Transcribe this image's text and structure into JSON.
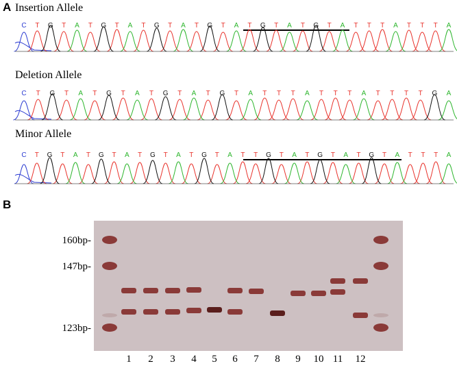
{
  "panel_a": {
    "label": "A",
    "tracks": [
      {
        "title": "Insertion Allele",
        "bases": [
          "C",
          "T",
          "G",
          "T",
          "A",
          "T",
          "G",
          "T",
          "A",
          "T",
          "G",
          "T",
          "A",
          "T",
          "G",
          "T",
          "A",
          "T",
          "G",
          "T",
          "A",
          "T",
          "G",
          "T",
          "A",
          "T",
          "T",
          "T",
          "A",
          "T",
          "T",
          "T",
          "A"
        ]
      },
      {
        "title": "Deletion Allele",
        "bases": [
          "C",
          "T",
          "G",
          "T",
          "A",
          "T",
          "G",
          "T",
          "A",
          "T",
          "G",
          "T",
          "A",
          "T",
          "G",
          "T",
          "A",
          "T",
          "T",
          "T",
          "A",
          "T",
          "T",
          "T",
          "A",
          "T",
          "T",
          "T",
          "T",
          "G",
          "A"
        ]
      },
      {
        "title": "Minor Allele",
        "bases": [
          "C",
          "T",
          "G",
          "T",
          "A",
          "T",
          "G",
          "T",
          "A",
          "T",
          "G",
          "T",
          "A",
          "T",
          "G",
          "T",
          "A",
          "T",
          "T",
          "G",
          "T",
          "A",
          "T",
          "G",
          "T",
          "A",
          "T",
          "G",
          "T",
          "A",
          "T",
          "T",
          "T",
          "A"
        ]
      }
    ]
  },
  "panel_b": {
    "label": "B",
    "markers": [
      "160bp-",
      "147bp-",
      "123bp-"
    ],
    "lanes": [
      "1",
      "2",
      "3",
      "4",
      "5",
      "6",
      "7",
      "8",
      "9",
      "10",
      "11",
      "12"
    ]
  }
}
